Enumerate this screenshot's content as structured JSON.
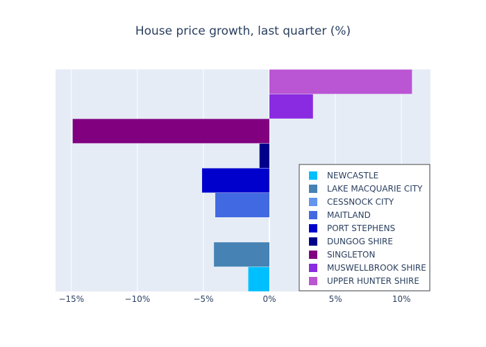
{
  "chart_data": {
    "type": "bar",
    "orientation": "horizontal",
    "title": "House price growth, last quarter (%)",
    "xlabel": "",
    "ylabel": "",
    "xlim": [
      -16.2,
      12.2
    ],
    "x_ticks": [
      -15,
      -10,
      -5,
      0,
      5,
      10
    ],
    "x_tick_labels": [
      "−15%",
      "−10%",
      "−5%",
      "0%",
      "5%",
      "10%"
    ],
    "grid": true,
    "legend_position": "bottom-right",
    "series": [
      {
        "name": "NEWCASTLE",
        "value": -1.6,
        "color": "#00bfff"
      },
      {
        "name": "LAKE MACQUARIE CITY",
        "value": -4.2,
        "color": "#4682b4"
      },
      {
        "name": "CESSNOCK CITY",
        "value": 0,
        "color": "#6495ed"
      },
      {
        "name": "MAITLAND",
        "value": -4.1,
        "color": "#4169e1"
      },
      {
        "name": "PORT STEPHENS",
        "value": -5.1,
        "color": "#0000cd"
      },
      {
        "name": "DUNGOG SHIRE",
        "value": -0.75,
        "color": "#00008b"
      },
      {
        "name": "SINGLETON",
        "value": -14.9,
        "color": "#800080"
      },
      {
        "name": "MUSWELLBROOK SHIRE",
        "value": 3.3,
        "color": "#8a2be2"
      },
      {
        "name": "UPPER HUNTER SHIRE",
        "value": 10.8,
        "color": "#ba55d3"
      }
    ]
  }
}
